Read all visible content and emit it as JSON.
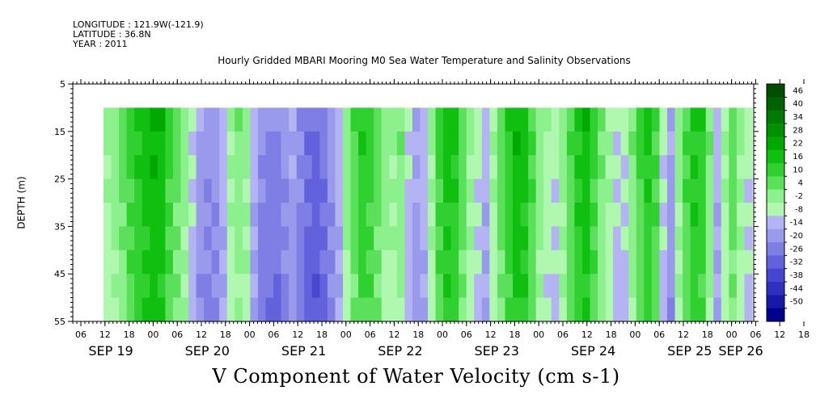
{
  "header": {
    "longitude": "LONGITUDE : 121.9W(-121.9)",
    "latitude": "LATITUDE : 36.8N",
    "year": "YEAR : 2011"
  },
  "chart_data": {
    "type": "heatmap",
    "title": "Hourly Gridded MBARI Mooring M0 Sea Water Temperature and Salinity Observations",
    "xlabel": "V Component of Water Velocity (cm s-1)",
    "ylabel": "DEPTH (m)",
    "y_ticks": [
      5,
      15,
      25,
      35,
      45,
      55
    ],
    "ylim": [
      5,
      55
    ],
    "y_reversed": true,
    "hour_ticks": [
      "06",
      "12",
      "18",
      "00",
      "06",
      "12",
      "18",
      "00",
      "06",
      "12",
      "18",
      "00",
      "06",
      "12",
      "18",
      "00",
      "06",
      "12",
      "18",
      "00",
      "06",
      "12",
      "18",
      "00",
      "06",
      "12",
      "18",
      "00",
      "06",
      "12",
      "18",
      "00"
    ],
    "day_labels": [
      "SEP 19",
      "SEP 20",
      "SEP 21",
      "SEP 22",
      "SEP 23",
      "SEP 24",
      "SEP 25",
      "SEP 26"
    ],
    "data_depth_range": [
      10,
      55
    ],
    "colorbar_labels": [
      "46",
      "40",
      "34",
      "28",
      "22",
      "16",
      "10",
      "4",
      "-2",
      "-8",
      "-14",
      "-20",
      "-26",
      "-32",
      "-38",
      "-44",
      "-50"
    ],
    "colorbar_colors": [
      "#004d00",
      "#006300",
      "#007a00",
      "#009000",
      "#00a800",
      "#10bf10",
      "#30d030",
      "#5ce05c",
      "#8cf08c",
      "#b0f7b0",
      "#b4b4f4",
      "#9a9aec",
      "#7e7ee4",
      "#6262dc",
      "#4646d0",
      "#3030c0",
      "#1818a8",
      "#00008c"
    ],
    "columns_v": [
      3,
      6,
      10,
      14,
      18,
      22,
      24,
      22,
      16,
      10,
      4,
      -4,
      -10,
      -14,
      -12,
      -6,
      2,
      6,
      4,
      -8,
      -14,
      -16,
      -18,
      -14,
      -10,
      -16,
      -20,
      -22,
      -18,
      -12,
      -6,
      4,
      12,
      18,
      16,
      10,
      4,
      2,
      6,
      -4,
      -10,
      -6,
      4,
      14,
      22,
      20,
      12,
      4,
      -2,
      -6,
      2,
      10,
      18,
      24,
      22,
      14,
      6,
      0,
      -2,
      4,
      12,
      20,
      22,
      16,
      8,
      2,
      -4,
      -2,
      6,
      14,
      20,
      14,
      -2,
      -10,
      4,
      14,
      20,
      18,
      6,
      -6,
      2,
      10,
      4,
      -2
    ]
  }
}
